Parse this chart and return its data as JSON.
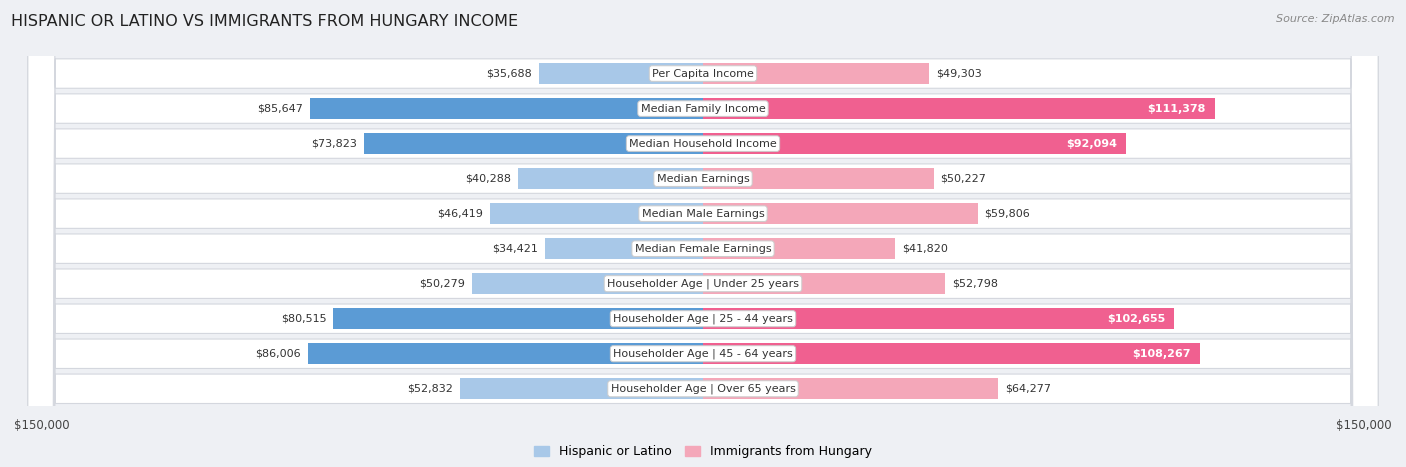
{
  "title": "HISPANIC OR LATINO VS IMMIGRANTS FROM HUNGARY INCOME",
  "source": "Source: ZipAtlas.com",
  "categories": [
    "Per Capita Income",
    "Median Family Income",
    "Median Household Income",
    "Median Earnings",
    "Median Male Earnings",
    "Median Female Earnings",
    "Householder Age | Under 25 years",
    "Householder Age | 25 - 44 years",
    "Householder Age | 45 - 64 years",
    "Householder Age | Over 65 years"
  ],
  "hispanic_values": [
    35688,
    85647,
    73823,
    40288,
    46419,
    34421,
    50279,
    80515,
    86006,
    52832
  ],
  "hungary_values": [
    49303,
    111378,
    92094,
    50227,
    59806,
    41820,
    52798,
    102655,
    108267,
    64277
  ],
  "hispanic_color_light": "#a8c8e8",
  "hispanic_color_dark": "#5b9bd5",
  "hungary_color_light": "#f4a7b9",
  "hungary_color_dark": "#f06090",
  "axis_max": 150000,
  "bg_color": "#eef0f4",
  "legend_hispanic": "Hispanic or Latino",
  "legend_hungary": "Immigrants from Hungary",
  "label_color_dark": "#333333",
  "label_color_white": "#ffffff",
  "hispanic_dark_threshold": 60000,
  "hungary_dark_threshold": 80000
}
